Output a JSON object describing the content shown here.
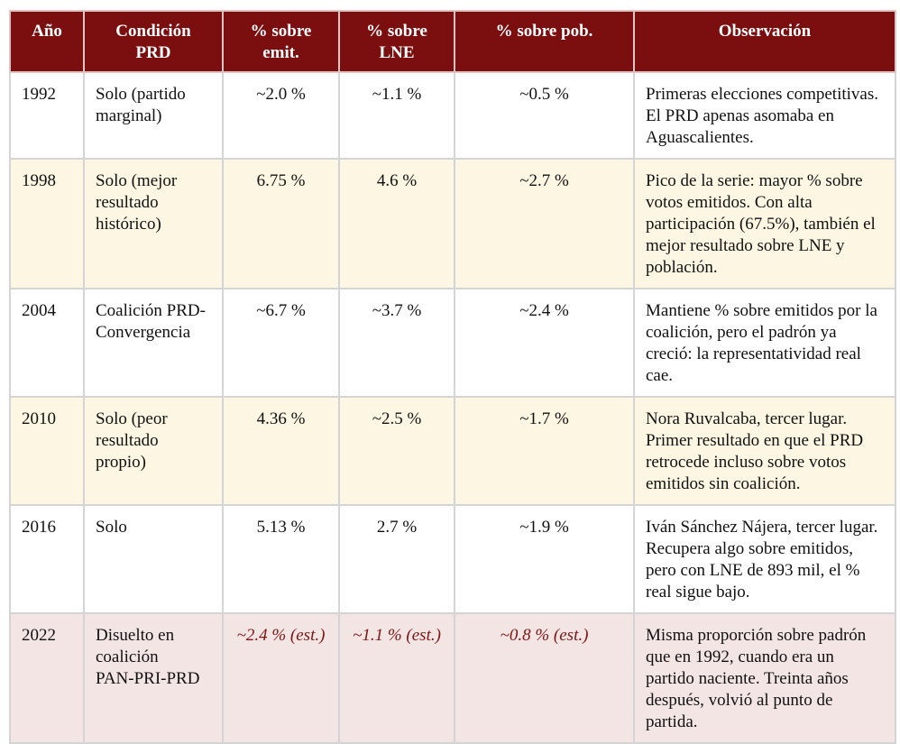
{
  "headers": [
    "Año",
    "Condición PRD",
    "% sobre emit.",
    "% sobre LNE",
    "% sobre pob.",
    "Observación"
  ],
  "rows": [
    {
      "year": "1992",
      "cond": "Solo (partido marginal)",
      "emit": "~2.0 %",
      "lne": "~1.1 %",
      "pob": "~0.5 %",
      "obs": "Primeras elecciones competitivas. El PRD apenas asomaba en Aguascalientes."
    },
    {
      "year": "1998",
      "cond": "Solo (mejor resultado histórico)",
      "emit": "6.75 %",
      "lne": "4.6 %",
      "pob": "~2.7 %",
      "obs": "Pico de la serie: mayor % sobre votos emitidos. Con alta participación (67.5%), también el mejor resultado sobre LNE y población."
    },
    {
      "year": "2004",
      "cond": "Coalición PRD-Convergencia",
      "emit": "~6.7 %",
      "lne": "~3.7 %",
      "pob": "~2.4 %",
      "obs": "Mantiene % sobre emitidos por la coalición, pero el padrón ya creció: la representatividad real cae."
    },
    {
      "year": "2010",
      "cond": "Solo (peor resultado propio)",
      "emit": "4.36 %",
      "lne": "~2.5 %",
      "pob": "~1.7 %",
      "obs": "Nora Ruvalcaba, tercer lugar. Primer resultado en que el PRD retrocede incluso sobre votos emitidos sin coalición."
    },
    {
      "year": "2016",
      "cond": "Solo",
      "emit": "5.13 %",
      "lne": "2.7 %",
      "pob": "~1.9 %",
      "obs": "Iván Sánchez Nájera, tercer lugar. Recupera algo sobre emitidos, pero con LNE de 893 mil, el % real sigue bajo."
    },
    {
      "year": "2022",
      "cond": "Disuelto en coalición PAN-PRI-PRD",
      "emit": "~2.4 % (est.)",
      "lne": "~1.1 % (est.)",
      "pob": "~0.8 % (est.)",
      "obs": "Misma proporción sobre padrón que en 1992, cuando era un partido naciente. Treinta años después, volvió al punto de partida."
    }
  ],
  "colors": {
    "header": "#7b0f10",
    "cream": "#fdf6e2",
    "pink": "#f4e5e5",
    "estimate": "#7b1414"
  }
}
